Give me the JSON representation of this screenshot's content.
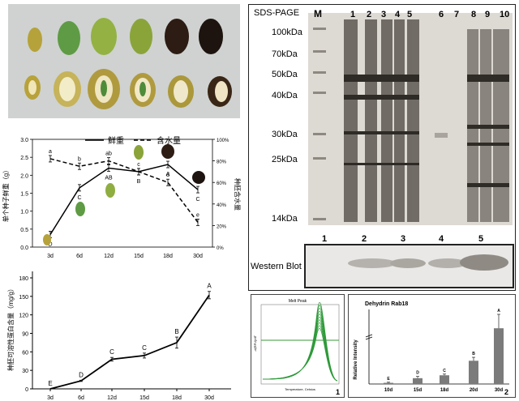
{
  "photo_panel": {
    "description_icon": "fruit-seed-photo"
  },
  "chart1": {
    "legend": {
      "fresh_weight": "鲜重",
      "water_content": "含水量"
    },
    "ylabel_left": "单个种子鲜重（g）",
    "ylabel_right": "种胚含水量",
    "left_ticks": [
      "0.0",
      "0.5",
      "1.0",
      "1.5",
      "2.0",
      "2.5",
      "3.0"
    ],
    "right_ticks": [
      "0%",
      "20%",
      "40%",
      "60%",
      "80%",
      "100%"
    ],
    "x_ticks": [
      "3d",
      "6d",
      "12d",
      "15d",
      "18d",
      "30d"
    ],
    "weight_letters": [
      "D",
      "C",
      "AB",
      "B",
      "A",
      "C"
    ],
    "water_letters": [
      "a",
      "b",
      "ab",
      "c",
      "d",
      "e"
    ]
  },
  "chart2": {
    "ylabel": "种胚可溶性蛋白含量（mg/g）",
    "y_ticks": [
      "0",
      "30",
      "60",
      "90",
      "120",
      "150",
      "180"
    ],
    "x_ticks": [
      "3d",
      "6d",
      "12d",
      "15d",
      "18d",
      "30d"
    ],
    "letters": [
      "E",
      "D",
      "C",
      "C",
      "B",
      "A"
    ]
  },
  "sds": {
    "title": "SDS-PAGE",
    "marker": "M",
    "lanes": [
      "1",
      "2",
      "3",
      "4",
      "5",
      "6",
      "7",
      "8",
      "9",
      "10"
    ],
    "mw": [
      "100kDa",
      "70kDa",
      "50kDa",
      "40kDa",
      "30kDa",
      "25kDa",
      "14kDa"
    ],
    "western_label": "Western Blot",
    "western_lanes": [
      "1",
      "2",
      "3",
      "4",
      "5"
    ]
  },
  "melt": {
    "title": "Melt Peak",
    "xlabel": "Temperature, Celsius",
    "ylabel": "-d(RFU)/dT",
    "panel": "1"
  },
  "rab": {
    "title": "Dehydrin Rab18",
    "ylabel": "Relative Intensity",
    "categories": [
      "10d",
      "15d",
      "18d",
      "20d",
      "30d"
    ],
    "letters": [
      "E",
      "D",
      "C",
      "B",
      "A"
    ],
    "panel": "2"
  },
  "chart_data": [
    {
      "type": "line",
      "title": "",
      "x": [
        "3d",
        "6d",
        "12d",
        "15d",
        "18d",
        "30d"
      ],
      "series": [
        {
          "name": "鲜重",
          "axis": "left",
          "values": [
            0.35,
            1.65,
            2.2,
            2.1,
            2.3,
            1.6
          ]
        },
        {
          "name": "含水量",
          "axis": "right",
          "values": [
            0.82,
            0.75,
            0.8,
            0.7,
            0.6,
            0.23
          ]
        }
      ],
      "ylim_left": [
        0,
        3.0
      ],
      "ylim_right": [
        0,
        1.0
      ]
    },
    {
      "type": "line",
      "title": "",
      "x": [
        "3d",
        "6d",
        "12d",
        "15d",
        "18d",
        "30d"
      ],
      "values": [
        0,
        13,
        48,
        54,
        75,
        152
      ],
      "ylim": [
        0,
        180
      ]
    },
    {
      "type": "bar",
      "title": "Dehydrin Rab18",
      "categories": [
        "10d",
        "15d",
        "18d",
        "20d",
        "30d"
      ],
      "values": [
        0.1,
        0.5,
        0.75,
        2.0,
        4.8
      ],
      "ylim": [
        0,
        6
      ]
    }
  ]
}
